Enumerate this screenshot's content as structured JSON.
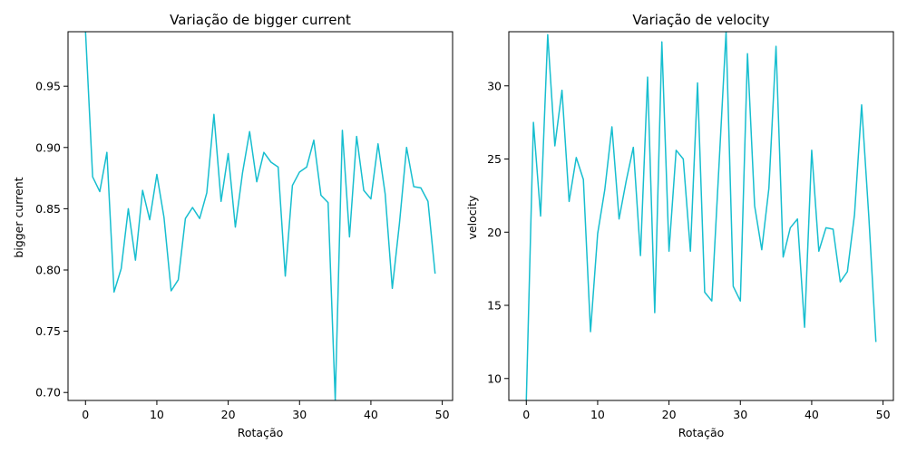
{
  "colors": {
    "line": "#17becf",
    "axis": "#000000",
    "background": "#ffffff"
  },
  "chart_data": [
    {
      "type": "line",
      "title": "Variação de bigger current",
      "xlabel": "Rotação",
      "ylabel": "bigger current",
      "xlim": [
        -2.45,
        51.45
      ],
      "ylim": [
        0.6935,
        0.9945
      ],
      "xticks": [
        0,
        10,
        20,
        30,
        40,
        50
      ],
      "yticks": [
        0.7,
        0.75,
        0.8,
        0.85,
        0.9,
        0.95
      ],
      "ytick_labels": [
        "0.70",
        "0.75",
        "0.80",
        "0.85",
        "0.90",
        "0.95"
      ],
      "grid": false,
      "series": [
        {
          "x": [
            0,
            1,
            2,
            3,
            4,
            5,
            6,
            7,
            8,
            9,
            10,
            11,
            12,
            13,
            14,
            15,
            16,
            17,
            18,
            19,
            20,
            21,
            22,
            23,
            24,
            25,
            26,
            27,
            28,
            29,
            30,
            31,
            32,
            33,
            34,
            35,
            36,
            37,
            38,
            39,
            40,
            41,
            42,
            43,
            44,
            45,
            46,
            47,
            48,
            49
          ],
          "values": [
            0.995,
            0.876,
            0.864,
            0.896,
            0.782,
            0.801,
            0.85,
            0.808,
            0.865,
            0.841,
            0.878,
            0.843,
            0.783,
            0.792,
            0.842,
            0.851,
            0.842,
            0.863,
            0.927,
            0.856,
            0.895,
            0.835,
            0.879,
            0.913,
            0.872,
            0.896,
            0.888,
            0.884,
            0.795,
            0.869,
            0.88,
            0.884,
            0.906,
            0.861,
            0.855,
            0.694,
            0.914,
            0.827,
            0.909,
            0.865,
            0.858,
            0.903,
            0.862,
            0.785,
            0.838,
            0.9,
            0.868,
            0.867,
            0.856,
            0.797
          ]
        }
      ]
    },
    {
      "type": "line",
      "title": "Variação de velocity",
      "xlabel": "Rotação",
      "ylabel": "velocity",
      "xlim": [
        -2.45,
        51.45
      ],
      "ylim": [
        8.5,
        33.7
      ],
      "xticks": [
        0,
        10,
        20,
        30,
        40,
        50
      ],
      "yticks": [
        10,
        15,
        20,
        25,
        30
      ],
      "ytick_labels": [
        "10",
        "15",
        "20",
        "25",
        "30"
      ],
      "grid": false,
      "series": [
        {
          "x": [
            0,
            1,
            2,
            3,
            4,
            5,
            6,
            7,
            8,
            9,
            10,
            11,
            12,
            13,
            14,
            15,
            16,
            17,
            18,
            19,
            20,
            21,
            22,
            23,
            24,
            25,
            26,
            27,
            28,
            29,
            30,
            31,
            32,
            33,
            34,
            35,
            36,
            37,
            38,
            39,
            40,
            41,
            42,
            43,
            44,
            45,
            46,
            47,
            48,
            49
          ],
          "values": [
            8.5,
            27.5,
            21.1,
            33.5,
            25.9,
            29.7,
            22.1,
            25.1,
            23.6,
            13.2,
            19.9,
            22.9,
            27.2,
            20.9,
            23.5,
            25.8,
            18.4,
            30.6,
            14.5,
            33.0,
            18.7,
            25.6,
            25.0,
            18.7,
            30.2,
            15.9,
            15.3,
            24.5,
            33.7,
            16.3,
            15.3,
            32.2,
            21.8,
            18.8,
            23.0,
            32.7,
            18.3,
            20.3,
            20.9,
            13.5,
            25.6,
            18.7,
            20.3,
            20.2,
            16.6,
            17.3,
            21.2,
            28.7,
            21.1,
            12.5
          ]
        }
      ]
    }
  ]
}
